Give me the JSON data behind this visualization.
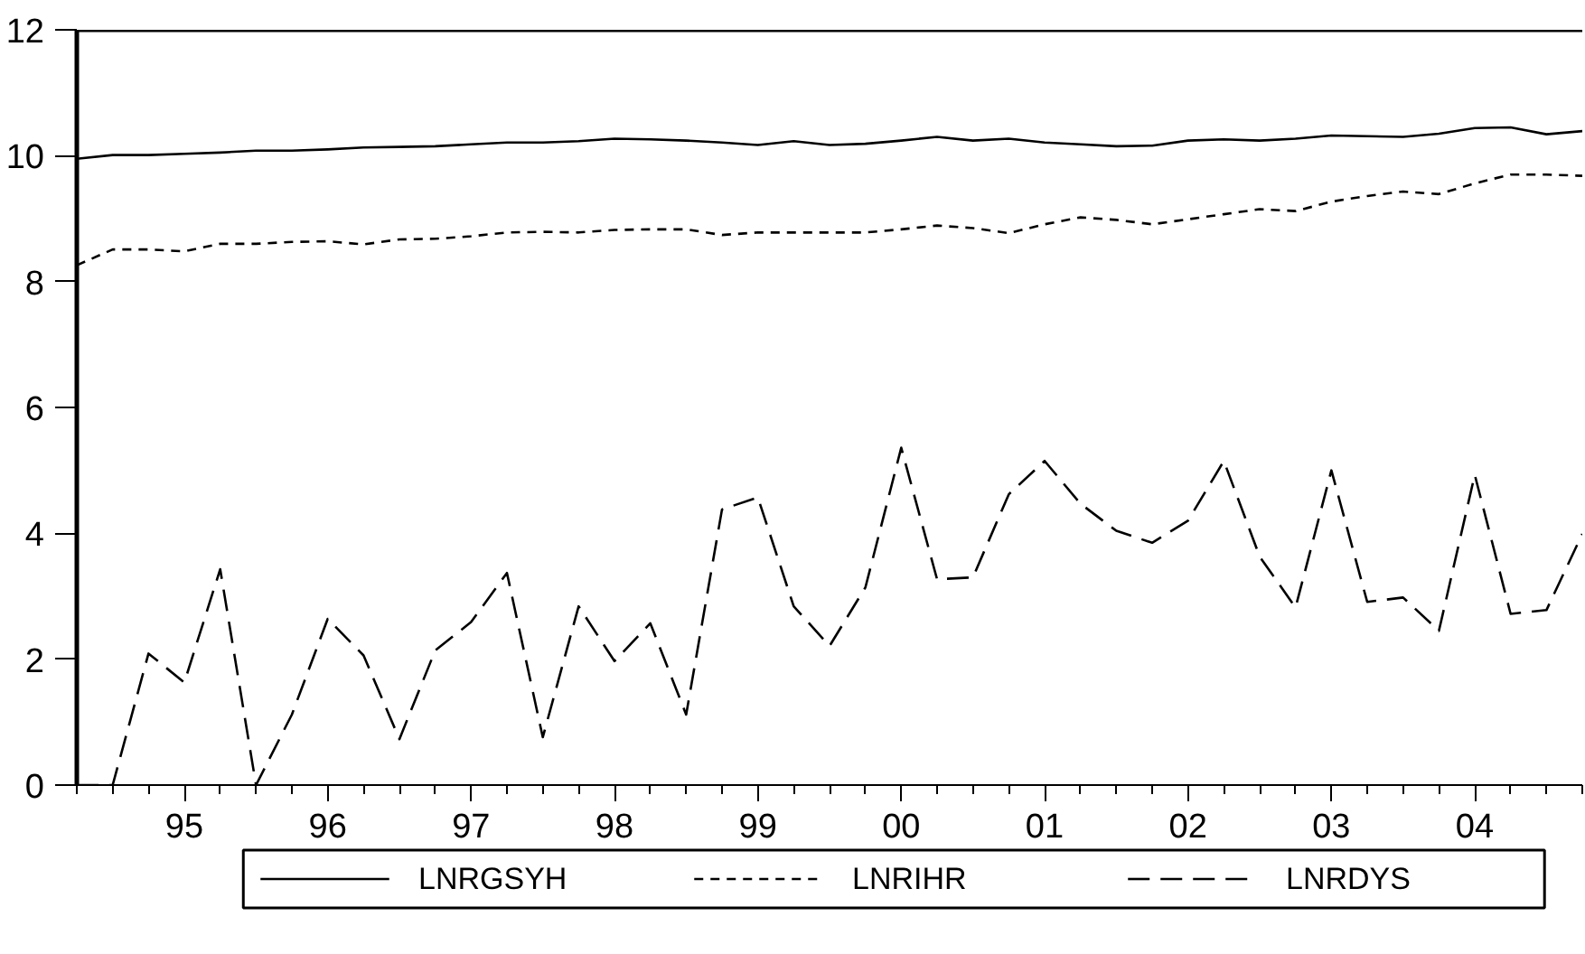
{
  "chart_data": {
    "type": "line",
    "x": [
      1994.25,
      1994.5,
      1994.75,
      1995,
      1995.25,
      1995.5,
      1995.75,
      1996,
      1996.25,
      1996.5,
      1996.75,
      1997,
      1997.25,
      1997.5,
      1997.75,
      1998,
      1998.25,
      1998.5,
      1998.75,
      1999,
      1999.25,
      1999.5,
      1999.75,
      2000,
      2000.25,
      2000.5,
      2000.75,
      2001,
      2001.25,
      2001.5,
      2001.75,
      2002,
      2002.25,
      2002.5,
      2002.75,
      2003,
      2003.25,
      2003.5,
      2003.75,
      2004,
      2004.25,
      2004.5,
      2004.75
    ],
    "series": [
      {
        "name": "LNRGSYH",
        "color": "#000000",
        "line_style": "solid",
        "values": [
          9.95,
          10.01,
          10.01,
          10.03,
          10.05,
          10.08,
          10.08,
          10.1,
          10.13,
          10.14,
          10.15,
          10.18,
          10.21,
          10.21,
          10.23,
          10.27,
          10.26,
          10.24,
          10.21,
          10.17,
          10.23,
          10.17,
          10.19,
          10.24,
          10.3,
          10.24,
          10.27,
          10.21,
          10.18,
          10.15,
          10.16,
          10.24,
          10.26,
          10.24,
          10.27,
          10.32,
          10.31,
          10.3,
          10.35,
          10.44,
          10.45,
          10.34,
          10.39
        ]
      },
      {
        "name": "LNRIHR",
        "color": "#000000",
        "line_style": "dashed",
        "values": [
          8.26,
          8.51,
          8.51,
          8.48,
          8.6,
          8.6,
          8.63,
          8.64,
          8.59,
          8.67,
          8.68,
          8.72,
          8.78,
          8.79,
          8.78,
          8.82,
          8.83,
          8.83,
          8.74,
          8.78,
          8.78,
          8.78,
          8.78,
          8.83,
          8.89,
          8.85,
          8.77,
          8.91,
          9.02,
          8.98,
          8.91,
          8.99,
          9.07,
          9.15,
          9.12,
          9.27,
          9.36,
          9.43,
          9.39,
          9.56,
          9.7,
          9.7,
          9.68
        ]
      },
      {
        "name": "LNRDYS",
        "color": "#000000",
        "line_style": "dashed",
        "values": [
          0,
          0,
          2.09,
          1.63,
          3.43,
          0,
          1.12,
          2.64,
          2.06,
          0.73,
          2.14,
          2.59,
          3.37,
          0.76,
          2.84,
          1.97,
          2.57,
          1.12,
          4.38,
          4.57,
          2.84,
          2.21,
          3.14,
          5.36,
          3.27,
          3.3,
          4.62,
          5.15,
          4.47,
          4.04,
          3.85,
          4.2,
          5.15,
          3.63,
          2.82,
          5.0,
          2.91,
          2.98,
          2.45,
          4.93,
          2.72,
          2.78,
          3.99
        ]
      }
    ],
    "xlim": [
      1994.25,
      2004.75
    ],
    "xticks": [
      {
        "value": 1995,
        "label": "95"
      },
      {
        "value": 1996,
        "label": "96"
      },
      {
        "value": 1997,
        "label": "97"
      },
      {
        "value": 1998,
        "label": "98"
      },
      {
        "value": 1999,
        "label": "99"
      },
      {
        "value": 2000,
        "label": "00"
      },
      {
        "value": 2001,
        "label": "01"
      },
      {
        "value": 2002,
        "label": "02"
      },
      {
        "value": 2003,
        "label": "03"
      },
      {
        "value": 2004,
        "label": "04"
      }
    ],
    "ylim": [
      0,
      12
    ],
    "yticks": [
      0,
      2,
      4,
      6,
      8,
      10,
      12
    ],
    "grid": false,
    "legend": "bottom"
  }
}
